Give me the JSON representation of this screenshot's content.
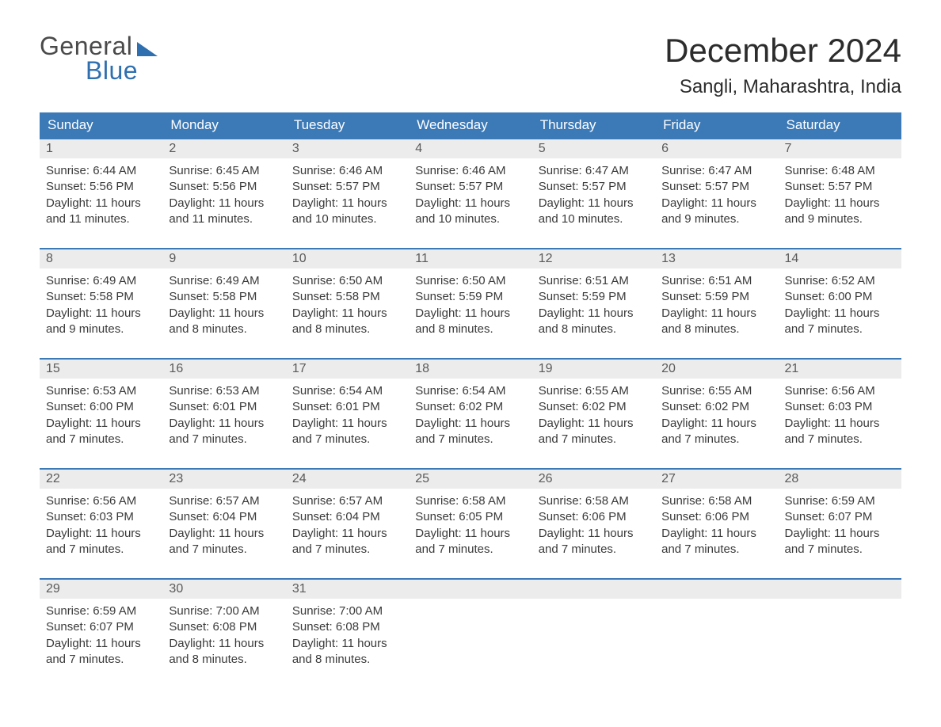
{
  "brand": {
    "word1": "General",
    "word2": "Blue",
    "accent_color": "#2f6fb0"
  },
  "title": "December 2024",
  "location": "Sangli, Maharashtra, India",
  "colors": {
    "header_bg": "#3b79b7",
    "header_text": "#ffffff",
    "daynum_bg": "#ececec",
    "row_border": "#3b79b7",
    "body_text": "#3a3a3a",
    "page_bg": "#ffffff"
  },
  "days_of_week": [
    "Sunday",
    "Monday",
    "Tuesday",
    "Wednesday",
    "Thursday",
    "Friday",
    "Saturday"
  ],
  "weeks": [
    [
      {
        "n": 1,
        "sunrise": "6:44 AM",
        "sunset": "5:56 PM",
        "daylight": "11 hours and 11 minutes."
      },
      {
        "n": 2,
        "sunrise": "6:45 AM",
        "sunset": "5:56 PM",
        "daylight": "11 hours and 11 minutes."
      },
      {
        "n": 3,
        "sunrise": "6:46 AM",
        "sunset": "5:57 PM",
        "daylight": "11 hours and 10 minutes."
      },
      {
        "n": 4,
        "sunrise": "6:46 AM",
        "sunset": "5:57 PM",
        "daylight": "11 hours and 10 minutes."
      },
      {
        "n": 5,
        "sunrise": "6:47 AM",
        "sunset": "5:57 PM",
        "daylight": "11 hours and 10 minutes."
      },
      {
        "n": 6,
        "sunrise": "6:47 AM",
        "sunset": "5:57 PM",
        "daylight": "11 hours and 9 minutes."
      },
      {
        "n": 7,
        "sunrise": "6:48 AM",
        "sunset": "5:57 PM",
        "daylight": "11 hours and 9 minutes."
      }
    ],
    [
      {
        "n": 8,
        "sunrise": "6:49 AM",
        "sunset": "5:58 PM",
        "daylight": "11 hours and 9 minutes."
      },
      {
        "n": 9,
        "sunrise": "6:49 AM",
        "sunset": "5:58 PM",
        "daylight": "11 hours and 8 minutes."
      },
      {
        "n": 10,
        "sunrise": "6:50 AM",
        "sunset": "5:58 PM",
        "daylight": "11 hours and 8 minutes."
      },
      {
        "n": 11,
        "sunrise": "6:50 AM",
        "sunset": "5:59 PM",
        "daylight": "11 hours and 8 minutes."
      },
      {
        "n": 12,
        "sunrise": "6:51 AM",
        "sunset": "5:59 PM",
        "daylight": "11 hours and 8 minutes."
      },
      {
        "n": 13,
        "sunrise": "6:51 AM",
        "sunset": "5:59 PM",
        "daylight": "11 hours and 8 minutes."
      },
      {
        "n": 14,
        "sunrise": "6:52 AM",
        "sunset": "6:00 PM",
        "daylight": "11 hours and 7 minutes."
      }
    ],
    [
      {
        "n": 15,
        "sunrise": "6:53 AM",
        "sunset": "6:00 PM",
        "daylight": "11 hours and 7 minutes."
      },
      {
        "n": 16,
        "sunrise": "6:53 AM",
        "sunset": "6:01 PM",
        "daylight": "11 hours and 7 minutes."
      },
      {
        "n": 17,
        "sunrise": "6:54 AM",
        "sunset": "6:01 PM",
        "daylight": "11 hours and 7 minutes."
      },
      {
        "n": 18,
        "sunrise": "6:54 AM",
        "sunset": "6:02 PM",
        "daylight": "11 hours and 7 minutes."
      },
      {
        "n": 19,
        "sunrise": "6:55 AM",
        "sunset": "6:02 PM",
        "daylight": "11 hours and 7 minutes."
      },
      {
        "n": 20,
        "sunrise": "6:55 AM",
        "sunset": "6:02 PM",
        "daylight": "11 hours and 7 minutes."
      },
      {
        "n": 21,
        "sunrise": "6:56 AM",
        "sunset": "6:03 PM",
        "daylight": "11 hours and 7 minutes."
      }
    ],
    [
      {
        "n": 22,
        "sunrise": "6:56 AM",
        "sunset": "6:03 PM",
        "daylight": "11 hours and 7 minutes."
      },
      {
        "n": 23,
        "sunrise": "6:57 AM",
        "sunset": "6:04 PM",
        "daylight": "11 hours and 7 minutes."
      },
      {
        "n": 24,
        "sunrise": "6:57 AM",
        "sunset": "6:04 PM",
        "daylight": "11 hours and 7 minutes."
      },
      {
        "n": 25,
        "sunrise": "6:58 AM",
        "sunset": "6:05 PM",
        "daylight": "11 hours and 7 minutes."
      },
      {
        "n": 26,
        "sunrise": "6:58 AM",
        "sunset": "6:06 PM",
        "daylight": "11 hours and 7 minutes."
      },
      {
        "n": 27,
        "sunrise": "6:58 AM",
        "sunset": "6:06 PM",
        "daylight": "11 hours and 7 minutes."
      },
      {
        "n": 28,
        "sunrise": "6:59 AM",
        "sunset": "6:07 PM",
        "daylight": "11 hours and 7 minutes."
      }
    ],
    [
      {
        "n": 29,
        "sunrise": "6:59 AM",
        "sunset": "6:07 PM",
        "daylight": "11 hours and 7 minutes."
      },
      {
        "n": 30,
        "sunrise": "7:00 AM",
        "sunset": "6:08 PM",
        "daylight": "11 hours and 8 minutes."
      },
      {
        "n": 31,
        "sunrise": "7:00 AM",
        "sunset": "6:08 PM",
        "daylight": "11 hours and 8 minutes."
      },
      null,
      null,
      null,
      null
    ]
  ],
  "labels": {
    "sunrise": "Sunrise:",
    "sunset": "Sunset:",
    "daylight": "Daylight:"
  }
}
